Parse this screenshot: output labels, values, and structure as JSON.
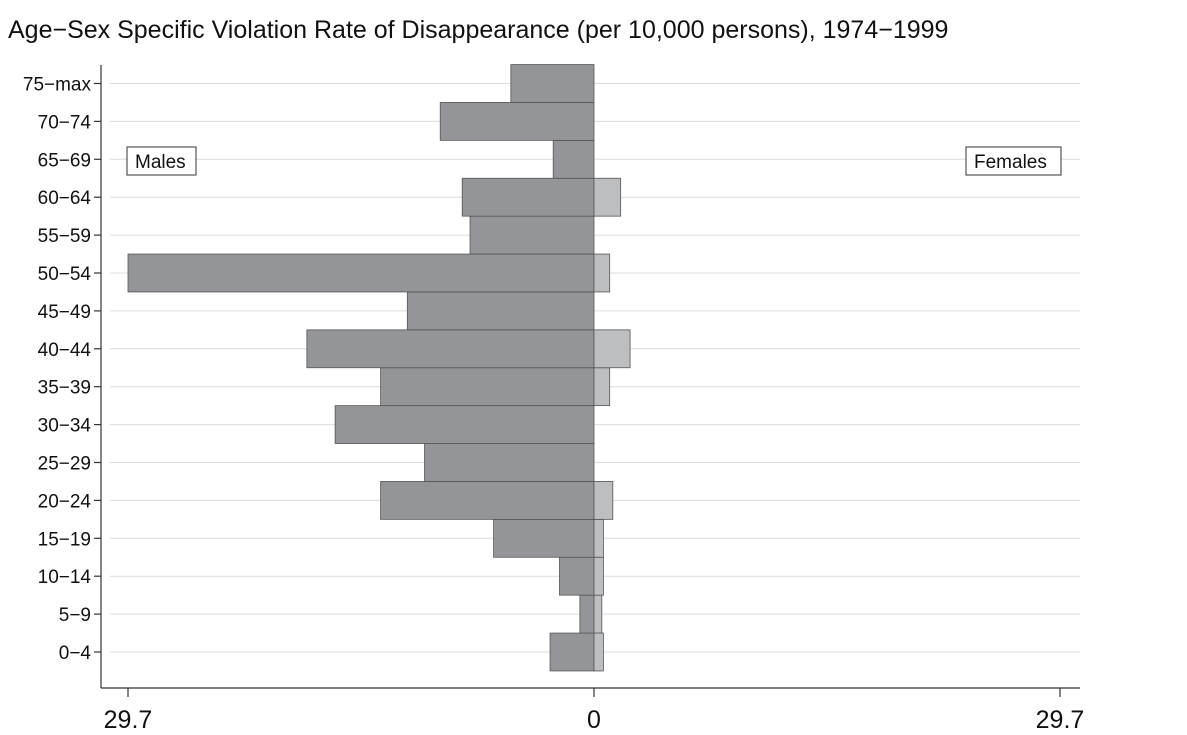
{
  "chart_data": {
    "type": "bar",
    "orientation": "horizontal",
    "subtype": "population-pyramid",
    "title": "Age−Sex Specific Violation Rate of Disappearance (per 10,000 persons), 1974−1999",
    "categories": [
      "0−4",
      "5−9",
      "10−14",
      "15−19",
      "20−24",
      "25−29",
      "30−34",
      "35−39",
      "40−44",
      "45−49",
      "50−54",
      "55−59",
      "60−64",
      "65−69",
      "70−74",
      "75−max"
    ],
    "series": [
      {
        "name": "Males",
        "side": "left",
        "color": "#939598",
        "values": [
          2.8,
          0.9,
          2.2,
          6.4,
          13.6,
          10.8,
          16.5,
          13.6,
          18.3,
          11.9,
          29.7,
          7.9,
          8.4,
          2.6,
          9.8,
          5.3
        ]
      },
      {
        "name": "Females",
        "side": "right",
        "color": "#bcbec0",
        "values": [
          0.6,
          0.5,
          0.6,
          0.6,
          1.2,
          0.0,
          0.0,
          1.0,
          2.3,
          0.0,
          1.0,
          0.0,
          1.7,
          0.0,
          0.0,
          0.0
        ]
      }
    ],
    "x_ticks": [
      "29.7",
      "0",
      "29.7"
    ],
    "xlim": [
      -29.7,
      29.7
    ],
    "grid": true,
    "legend_placement": "inside-top-left-and-top-right"
  }
}
